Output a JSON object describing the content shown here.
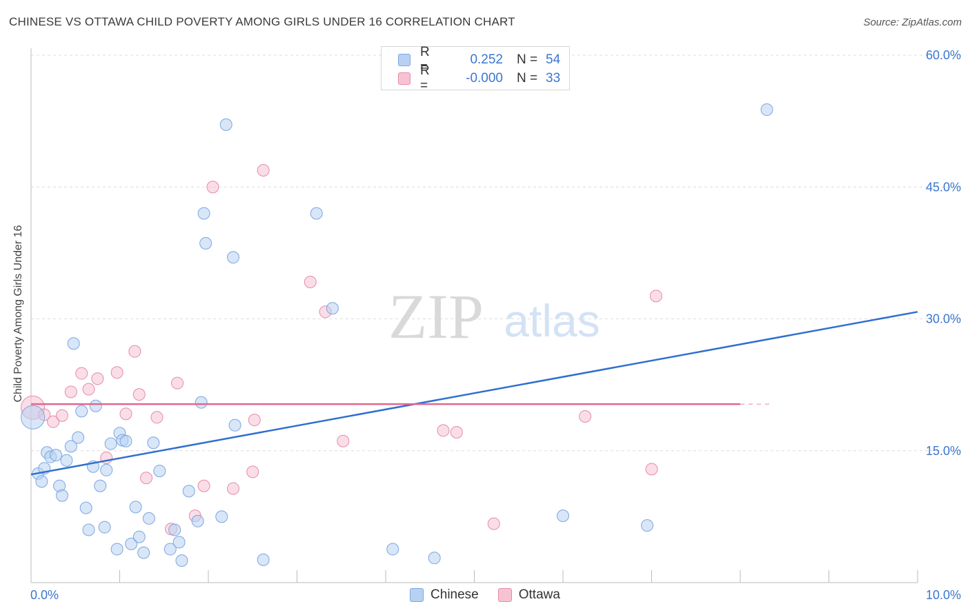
{
  "title": "CHINESE VS OTTAWA CHILD POVERTY AMONG GIRLS UNDER 16 CORRELATION CHART",
  "source": "Source: ZipAtlas.com",
  "watermark": {
    "zip": "ZIP",
    "atlas": "atlas"
  },
  "legend": {
    "rows": [
      {
        "r_label": "R =",
        "r_value": "0.252",
        "n_label": "N =",
        "n_value": "54"
      },
      {
        "r_label": "R =",
        "r_value": "-0.000",
        "n_label": "N =",
        "n_value": "33"
      }
    ]
  },
  "bottom_legend": {
    "chinese": "Chinese",
    "ottawa": "Ottawa"
  },
  "colors": {
    "chinese_fill": "#b8d1f3",
    "chinese_stroke": "#7aa6df",
    "chinese_line": "#2f6fcf",
    "ottawa_fill": "#f6c3d3",
    "ottawa_stroke": "#e68aa8",
    "ottawa_line": "#e0668f",
    "tick_label": "#3a76d0",
    "grid": "#dcdcdc"
  },
  "chart_data": {
    "type": "scatter",
    "title": "CHINESE VS OTTAWA CHILD POVERTY AMONG GIRLS UNDER 16 CORRELATION CHART",
    "xlabel": "",
    "ylabel": "Child Poverty Among Girls Under 16",
    "xlim": [
      0,
      10
    ],
    "ylim": [
      0,
      60
    ],
    "x_tick_labels": [
      "0.0%",
      "10.0%"
    ],
    "y_tick_values": [
      15,
      30,
      45,
      60
    ],
    "y_tick_labels": [
      "15.0%",
      "30.0%",
      "45.0%",
      "60.0%"
    ],
    "grid": true,
    "legend_position": "top-center",
    "series": [
      {
        "name": "Chinese",
        "r": 0.252,
        "n": 54,
        "trend": {
          "x": [
            0,
            10
          ],
          "y": [
            12.3,
            30.8
          ]
        },
        "points": [
          [
            0.02,
            18.8
          ],
          [
            0.08,
            12.4
          ],
          [
            0.12,
            11.5
          ],
          [
            0.15,
            13.0
          ],
          [
            0.18,
            14.8
          ],
          [
            0.22,
            14.3
          ],
          [
            0.28,
            14.5
          ],
          [
            0.32,
            11.0
          ],
          [
            0.35,
            9.9
          ],
          [
            0.4,
            13.9
          ],
          [
            0.45,
            15.5
          ],
          [
            0.48,
            27.2
          ],
          [
            0.53,
            16.5
          ],
          [
            0.57,
            19.5
          ],
          [
            0.62,
            8.5
          ],
          [
            0.65,
            6.0
          ],
          [
            0.7,
            13.2
          ],
          [
            0.73,
            20.1
          ],
          [
            0.78,
            11.0
          ],
          [
            0.83,
            6.3
          ],
          [
            0.85,
            12.8
          ],
          [
            0.9,
            15.8
          ],
          [
            0.97,
            3.8
          ],
          [
            1.0,
            17.0
          ],
          [
            1.03,
            16.2
          ],
          [
            1.07,
            16.1
          ],
          [
            1.13,
            4.4
          ],
          [
            1.18,
            8.6
          ],
          [
            1.22,
            5.2
          ],
          [
            1.27,
            3.4
          ],
          [
            1.33,
            7.3
          ],
          [
            1.38,
            15.9
          ],
          [
            1.45,
            12.7
          ],
          [
            1.57,
            3.8
          ],
          [
            1.62,
            6.0
          ],
          [
            1.67,
            4.6
          ],
          [
            1.7,
            2.5
          ],
          [
            1.78,
            10.4
          ],
          [
            1.88,
            7.0
          ],
          [
            1.92,
            20.5
          ],
          [
            1.95,
            42.0
          ],
          [
            1.97,
            38.6
          ],
          [
            2.15,
            7.5
          ],
          [
            2.2,
            52.1
          ],
          [
            2.28,
            37.0
          ],
          [
            2.3,
            17.9
          ],
          [
            2.62,
            2.6
          ],
          [
            3.22,
            42.0
          ],
          [
            3.4,
            31.2
          ],
          [
            4.08,
            3.8
          ],
          [
            4.55,
            2.8
          ],
          [
            6.0,
            7.6
          ],
          [
            6.95,
            6.5
          ],
          [
            8.3,
            53.8
          ]
        ]
      },
      {
        "name": "Ottawa",
        "r": -0.0,
        "n": 33,
        "trend": {
          "x": [
            0,
            8.0
          ],
          "y": [
            20.3,
            20.3
          ]
        },
        "trend_dashed": {
          "x": [
            8.0,
            8.35
          ],
          "y": [
            20.3,
            20.3
          ]
        },
        "points": [
          [
            0.02,
            19.9
          ],
          [
            0.15,
            19.1
          ],
          [
            0.25,
            18.3
          ],
          [
            0.35,
            19.0
          ],
          [
            0.45,
            21.7
          ],
          [
            0.57,
            23.8
          ],
          [
            0.65,
            22.0
          ],
          [
            0.75,
            23.2
          ],
          [
            0.85,
            14.2
          ],
          [
            0.97,
            23.9
          ],
          [
            1.07,
            19.2
          ],
          [
            1.17,
            26.3
          ],
          [
            1.22,
            21.4
          ],
          [
            1.3,
            11.9
          ],
          [
            1.42,
            18.8
          ],
          [
            1.58,
            6.1
          ],
          [
            1.65,
            22.7
          ],
          [
            1.85,
            7.6
          ],
          [
            1.95,
            11.0
          ],
          [
            2.05,
            45.0
          ],
          [
            2.28,
            10.7
          ],
          [
            2.5,
            12.6
          ],
          [
            2.52,
            18.5
          ],
          [
            2.62,
            46.9
          ],
          [
            3.15,
            34.2
          ],
          [
            3.32,
            30.8
          ],
          [
            3.52,
            16.1
          ],
          [
            4.65,
            17.3
          ],
          [
            4.8,
            17.1
          ],
          [
            5.22,
            6.7
          ],
          [
            6.25,
            18.9
          ],
          [
            7.0,
            12.9
          ],
          [
            7.05,
            32.6
          ]
        ]
      }
    ]
  }
}
